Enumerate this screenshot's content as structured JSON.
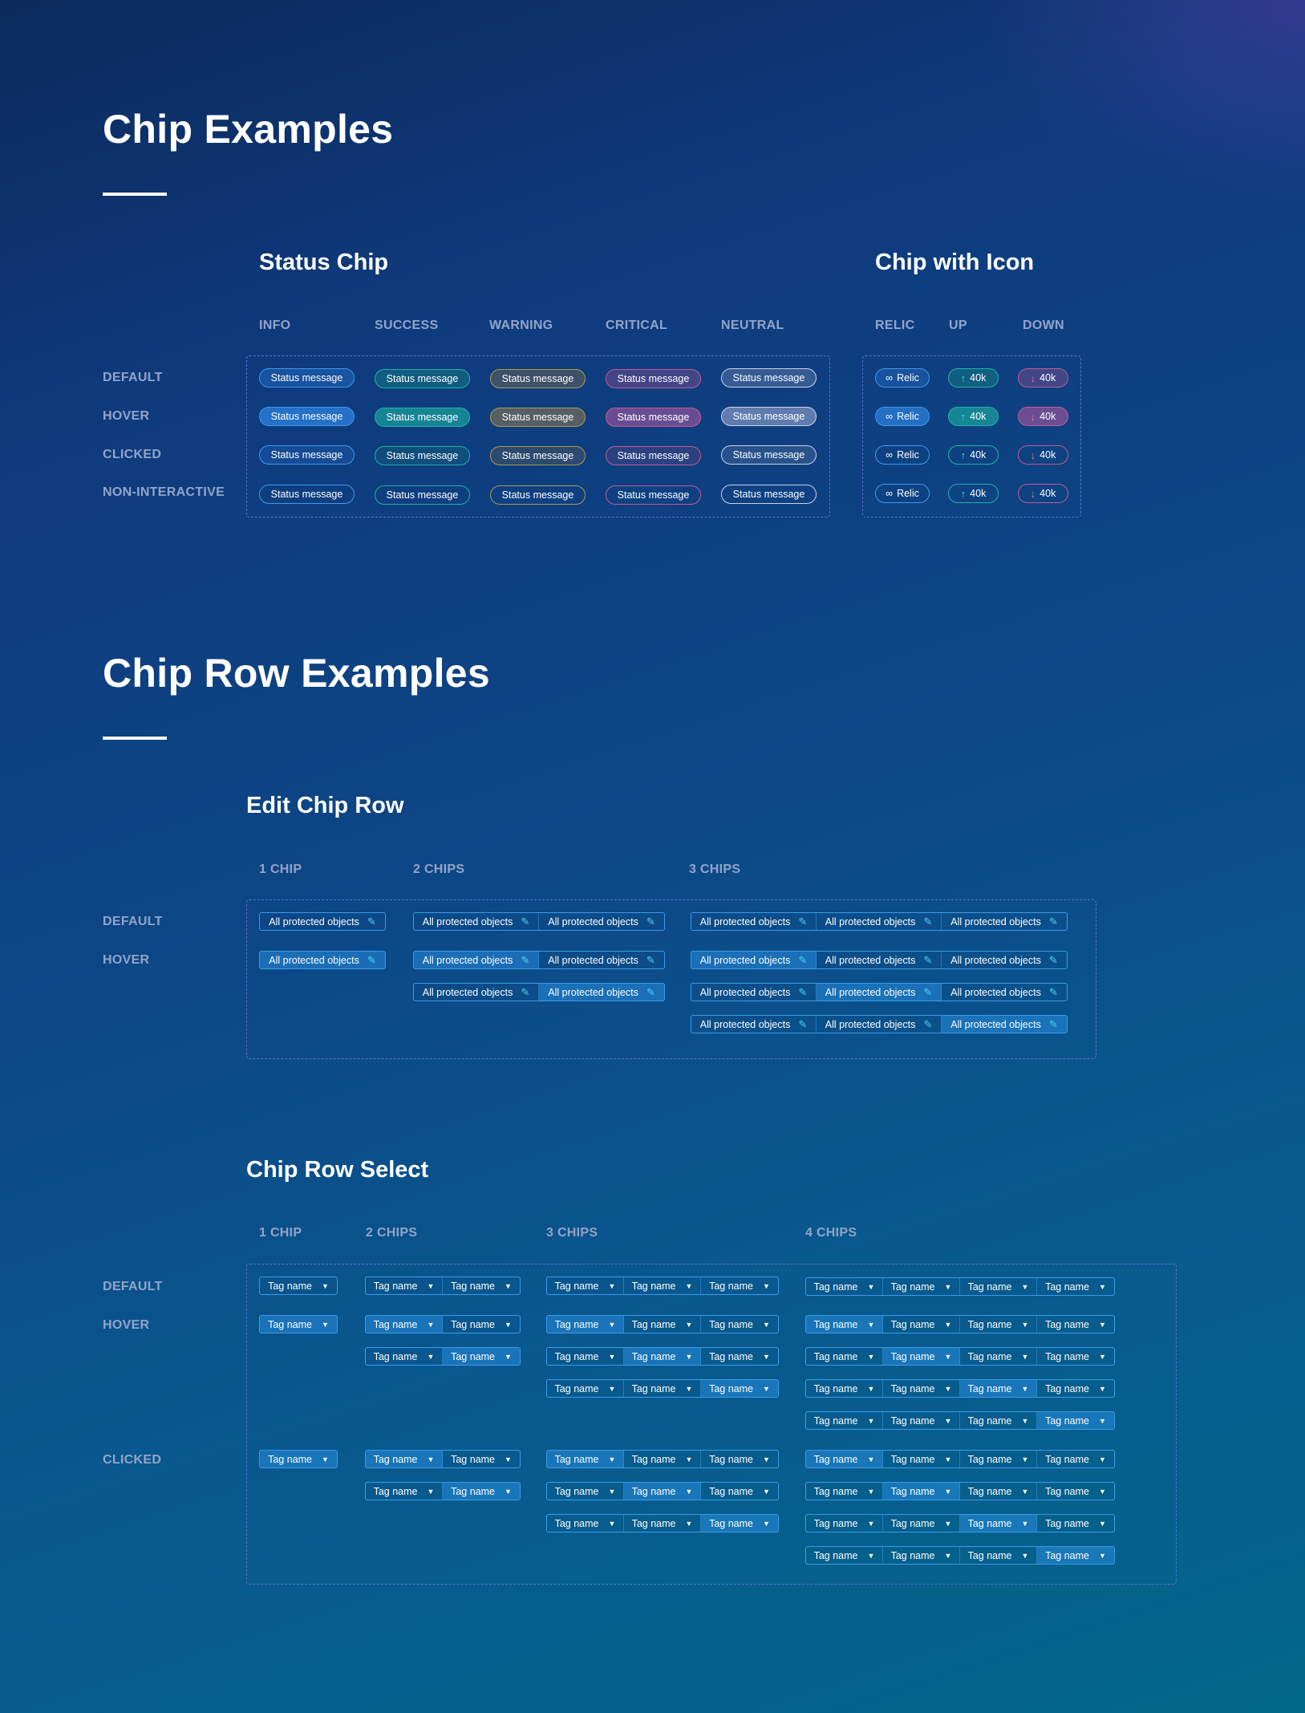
{
  "chip_examples": {
    "title": "Chip Examples",
    "status": {
      "title": "Status Chip",
      "columns": [
        "INFO",
        "SUCCESS",
        "WARNING",
        "CRITICAL",
        "NEUTRAL"
      ],
      "label": "Status message"
    },
    "icon": {
      "title": "Chip with Icon",
      "columns": [
        "RELIC",
        "UP",
        "DOWN"
      ],
      "relic_label": "Relic",
      "up_label": "40k",
      "down_label": "40k",
      "relic_icon": "infinity-icon",
      "up_icon": "arrow-up-icon",
      "down_icon": "arrow-down-icon"
    },
    "rows": [
      "DEFAULT",
      "HOVER",
      "CLICKED",
      "NON-INTERACTIVE"
    ],
    "colors": {
      "info": "#3a9ae8",
      "success": "#1fb3a6",
      "warning": "#a89a4e",
      "critical": "#c25a94",
      "neutral": "#c9d2e6"
    }
  },
  "chip_row_examples": {
    "title": "Chip Row Examples",
    "edit": {
      "title": "Edit Chip Row",
      "columns": [
        "1 CHIP",
        "2 CHIPS",
        "3 CHIPS"
      ],
      "rows": [
        "DEFAULT",
        "HOVER"
      ],
      "chip_label": "All protected objects",
      "icon": "pencil-icon"
    },
    "select": {
      "title": "Chip Row Select",
      "columns": [
        "1 CHIP",
        "2 CHIPS",
        "3 CHIPS",
        "4 CHIPS"
      ],
      "rows": [
        "DEFAULT",
        "HOVER",
        "CLICKED"
      ],
      "chip_label": "Tag name",
      "icon": "caret-down-icon"
    }
  }
}
